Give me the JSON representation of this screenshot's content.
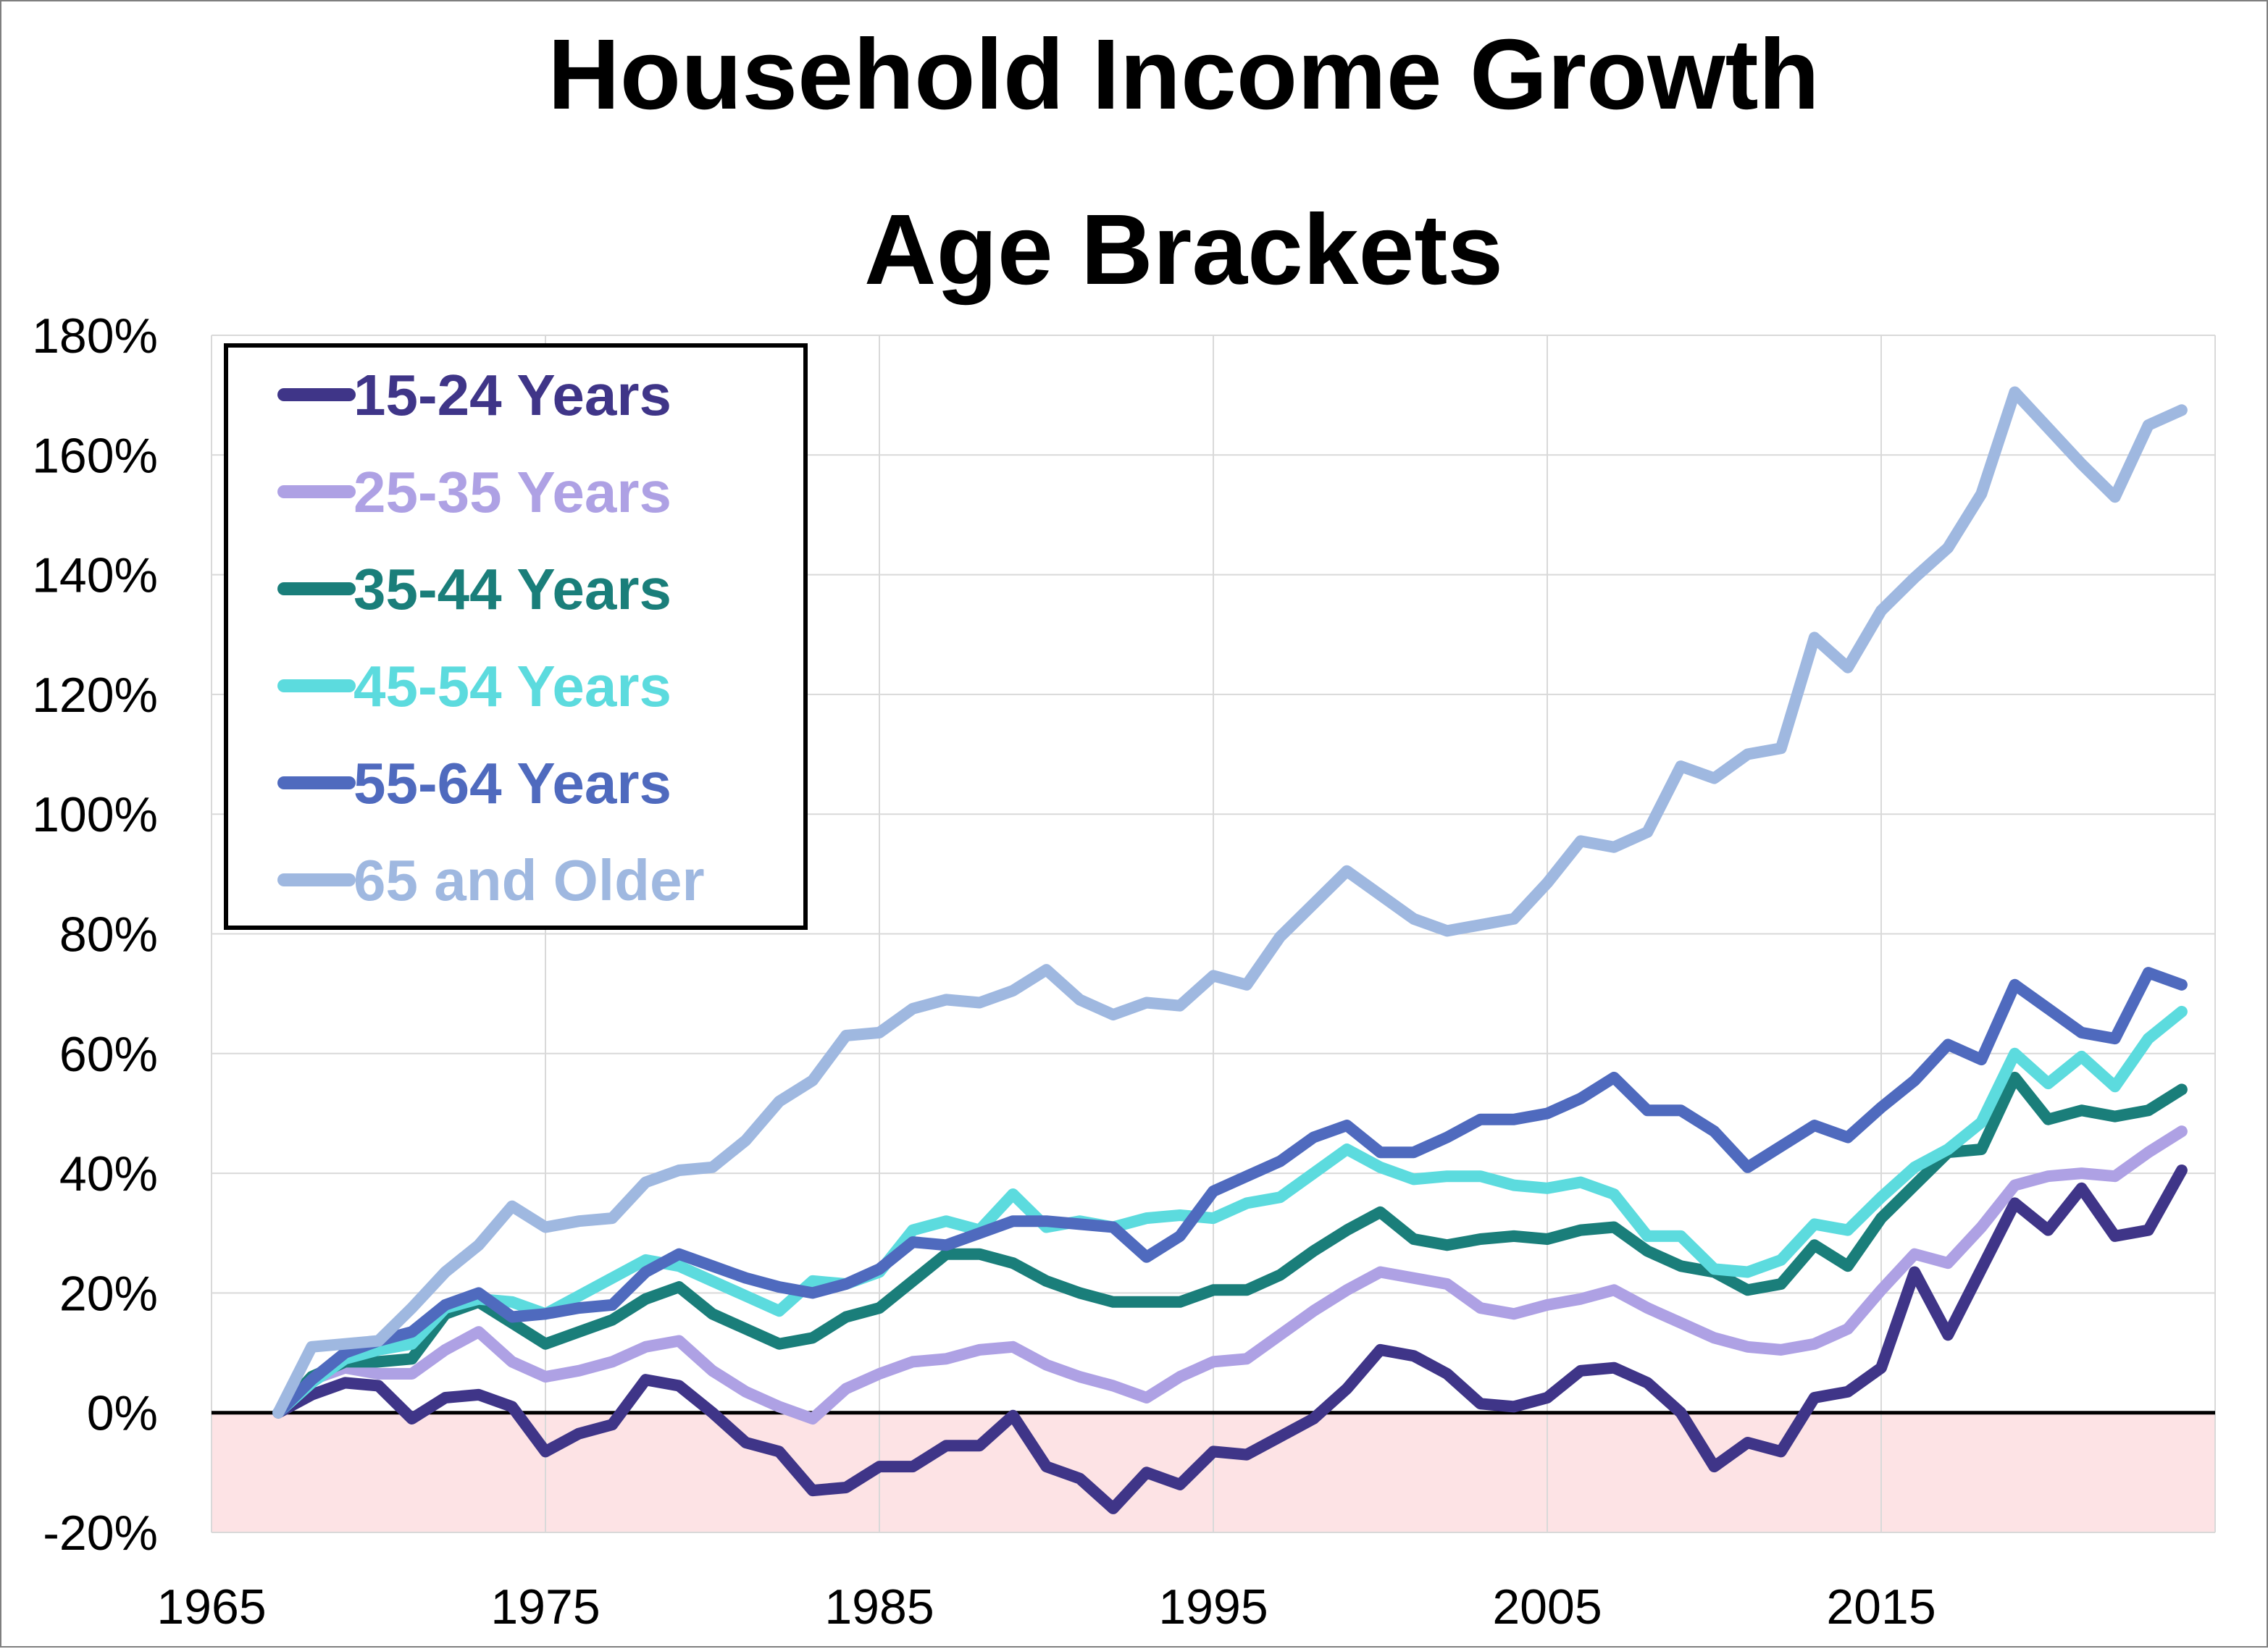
{
  "chart_data": {
    "type": "line",
    "title": "Household Income Growth",
    "subtitle": "Age Brackets",
    "xlabel": "",
    "ylabel": "",
    "xlim": [
      1965,
      2025
    ],
    "ylim": [
      -20,
      180
    ],
    "x_ticks": [
      1965,
      1975,
      1985,
      1995,
      2005,
      2015
    ],
    "y_ticks": [
      -20,
      0,
      20,
      40,
      60,
      80,
      100,
      120,
      140,
      160,
      180
    ],
    "y_tick_format": "percent",
    "grid": true,
    "negative_region_color": "#fde3e5",
    "zero_line_color": "#000000",
    "legend_position": "top-left",
    "x": [
      1967,
      1968,
      1969,
      1970,
      1971,
      1972,
      1973,
      1974,
      1975,
      1976,
      1977,
      1978,
      1979,
      1980,
      1981,
      1982,
      1983,
      1984,
      1985,
      1986,
      1987,
      1988,
      1989,
      1990,
      1991,
      1992,
      1993,
      1994,
      1995,
      1996,
      1997,
      1998,
      1999,
      2000,
      2001,
      2002,
      2003,
      2004,
      2005,
      2006,
      2007,
      2008,
      2009,
      2010,
      2011,
      2012,
      2013,
      2014,
      2015,
      2016,
      2017,
      2018,
      2019,
      2020,
      2021,
      2022,
      2023,
      2024
    ],
    "series": [
      {
        "name": "15-24 Years",
        "color": "#3f3588",
        "values": [
          0,
          3,
          5,
          4.5,
          -1,
          2.5,
          3,
          1,
          -6.5,
          -3.5,
          -2,
          5.5,
          4.5,
          0,
          -5,
          -6.5,
          -13,
          -12.5,
          -9,
          -9,
          -5.5,
          -5.5,
          -0.5,
          -9,
          -11,
          -16,
          -10,
          -12,
          -6.5,
          -7,
          -4,
          -1,
          4,
          10.5,
          9.5,
          6.5,
          1.5,
          1,
          2.5,
          7,
          7.5,
          5,
          0,
          -9,
          -5,
          -6.5,
          2.5,
          3.5,
          7.5,
          23.5,
          13,
          24,
          35,
          30.5,
          37.5,
          29.5,
          30.5,
          40.5
        ]
      },
      {
        "name": "25-35 Years",
        "color": "#aea1e4",
        "values": [
          0,
          5.5,
          7.5,
          6.5,
          6.5,
          10.5,
          13.5,
          8.5,
          6,
          7,
          8.5,
          11,
          12,
          7,
          3.5,
          1,
          -1,
          4,
          6.5,
          8.5,
          9,
          10.5,
          11,
          8,
          6,
          4.5,
          2.5,
          6,
          8.5,
          9,
          13,
          17,
          20.5,
          23.5,
          22.5,
          21.5,
          17.5,
          16.5,
          18,
          19,
          20.5,
          17.5,
          15,
          12.5,
          11,
          10.5,
          11.5,
          14,
          20.5,
          26.5,
          25,
          31,
          38,
          39.5,
          40,
          39.5,
          43.5,
          47
        ]
      },
      {
        "name": "35-44 Years",
        "color": "#1a7e7a",
        "values": [
          0,
          6,
          8.5,
          8.5,
          9,
          16.5,
          18.5,
          15,
          11.5,
          13.5,
          15.5,
          19,
          21,
          16.5,
          14,
          11.5,
          12.5,
          16,
          17.5,
          22,
          26.5,
          26.5,
          25,
          22,
          20,
          18.5,
          18.5,
          18.5,
          20.5,
          20.5,
          23,
          27,
          30.5,
          33.5,
          29,
          28,
          29,
          29.5,
          29,
          30.5,
          31,
          27,
          24.5,
          23.5,
          20.5,
          21.5,
          28,
          24.5,
          32.5,
          38,
          43.5,
          44,
          56,
          49,
          50.5,
          49.5,
          50.5,
          54
        ]
      },
      {
        "name": "45-54 Years",
        "color": "#5cdbde",
        "values": [
          0,
          5,
          9,
          10.5,
          11.5,
          17.5,
          19,
          18.5,
          16.5,
          19.5,
          22.5,
          25.5,
          24.5,
          22,
          19.5,
          17,
          22,
          21.5,
          23.5,
          30.5,
          32,
          30.5,
          36.5,
          31,
          32,
          31,
          32.5,
          33,
          32.5,
          35,
          36,
          40,
          44,
          41,
          39,
          39.5,
          39.5,
          38,
          37.5,
          38.5,
          36.5,
          29.5,
          29.5,
          24,
          23.5,
          25.5,
          31.5,
          30.5,
          36,
          41,
          44,
          48.5,
          60,
          55,
          59.5,
          54.5,
          62.5,
          67
        ]
      },
      {
        "name": "55-64 Years",
        "color": "#4f6abe",
        "values": [
          0,
          5.5,
          10,
          12,
          13.5,
          18,
          20,
          16,
          16.5,
          17.5,
          18,
          23.5,
          26.5,
          24.5,
          22.5,
          21,
          20,
          21.5,
          24,
          28.5,
          28,
          30,
          32,
          32,
          31.5,
          31,
          26,
          29.5,
          37,
          39.5,
          42,
          46,
          48,
          43.5,
          43.5,
          46,
          49,
          49,
          50,
          52.5,
          56,
          50.5,
          50.5,
          47,
          41,
          44.5,
          48,
          46,
          51,
          55.5,
          61.5,
          59,
          71.5,
          67.5,
          63.5,
          62.5,
          73.5,
          71.5
        ]
      },
      {
        "name": "65 and Older",
        "color": "#9fb8e0",
        "values": [
          0,
          11,
          11.5,
          12,
          17.5,
          23.5,
          28,
          34.5,
          31,
          32,
          32.5,
          38.5,
          40.5,
          41,
          45.5,
          52,
          55.5,
          63,
          63.5,
          67.5,
          69,
          68.5,
          70.5,
          74,
          69,
          66.5,
          68.5,
          68,
          73,
          71.5,
          79.5,
          85,
          90.5,
          86.5,
          82.5,
          80.5,
          81.5,
          82.5,
          88.5,
          95.5,
          94.5,
          97,
          108,
          106,
          110,
          111,
          129.5,
          124.5,
          134,
          139.5,
          144.5,
          153.5,
          170.5,
          164.5,
          158.5,
          153,
          165,
          167.5
        ]
      }
    ]
  }
}
